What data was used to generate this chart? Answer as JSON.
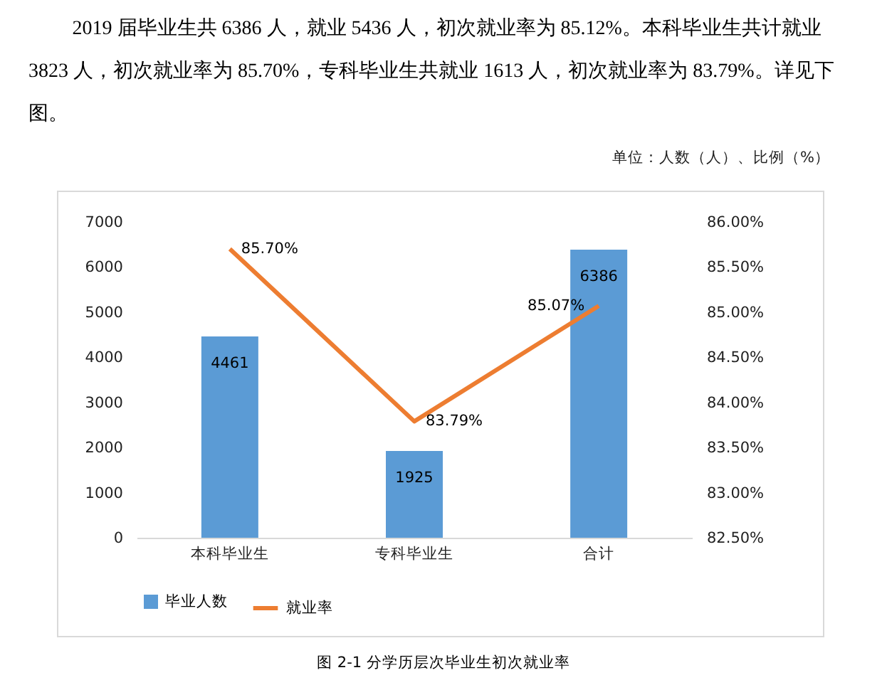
{
  "chart_data": {
    "type": "bar",
    "title": "图 2-1 分学历层次毕业生初次就业率",
    "annotations": [
      "2019 届毕业生共 6386 人，就业 5436 人，初次就业率为 85.12%。本科毕业生共计就业 3823 人，初次就业率为 85.70%，专科毕业生共就业 1613 人，初次就业率为 83.79%。详见下图。",
      "单位：人数（人）、比例（%）"
    ],
    "categories": [
      "本科毕业生",
      "专科毕业生",
      "合计"
    ],
    "series": [
      {
        "name": "毕业人数",
        "color": "#5b9bd5",
        "values": [
          4461,
          1925,
          6386
        ]
      },
      {
        "name": "就业率",
        "type": "line",
        "axis": "y2",
        "color": "#ed7d31",
        "values": [
          85.7,
          83.79,
          85.07
        ],
        "value_labels": [
          "85.70%",
          "83.79%",
          "85.07%"
        ]
      }
    ],
    "ylim": [
      0,
      7000
    ],
    "yticks": [
      0,
      1000,
      2000,
      3000,
      4000,
      5000,
      6000,
      7000
    ],
    "y2lim": [
      82.5,
      86
    ],
    "y2ticks": [
      {
        "value": 82.5,
        "label": "82.50%"
      },
      {
        "value": 83,
        "label": "83.00%"
      },
      {
        "value": 83.5,
        "label": "83.50%"
      },
      {
        "value": 84,
        "label": "84.00%"
      },
      {
        "value": 84.5,
        "label": "84.50%"
      },
      {
        "value": 85,
        "label": "85.00%"
      },
      {
        "value": 85.5,
        "label": "85.50%"
      },
      {
        "value": 86,
        "label": "86.00%"
      }
    ],
    "data_labels": true,
    "legend": "bottom",
    "grid": false
  }
}
